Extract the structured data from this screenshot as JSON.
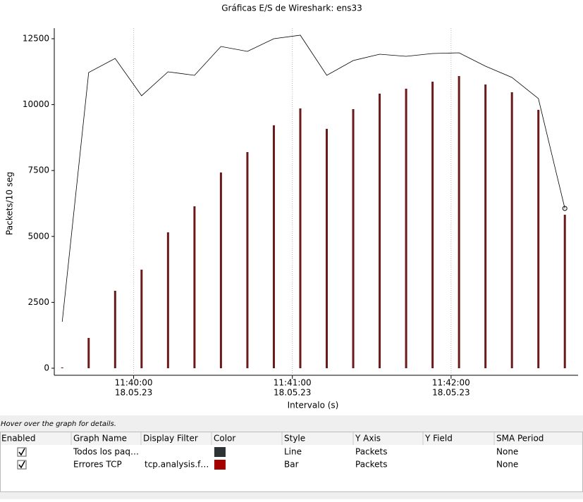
{
  "chart_data": {
    "type": "combo",
    "title": "Gráficas E/S de Wireshark: ens33",
    "ylabel": "Packets/10 seg",
    "xlabel": "Intervalo (s)",
    "x": [
      41973,
      41983,
      41993,
      42003,
      42013,
      42023,
      42033,
      42043,
      42053,
      42063,
      42073,
      42083,
      42093,
      42103,
      42113,
      42123,
      42133,
      42143,
      42153,
      42163
    ],
    "series": [
      {
        "type": "line",
        "color": "#000000",
        "values": [
          1763,
          11218,
          11752,
          10337,
          11245,
          11111,
          12206,
          12019,
          12500,
          12634,
          11111,
          11672,
          11912,
          11832,
          11939,
          11966,
          11458,
          11031,
          10230,
          6063
        ]
      },
      {
        "type": "bar",
        "color": "#6b1a1a",
        "values": [
          30,
          1150,
          2938,
          3739,
          5155,
          6143,
          7425,
          8200,
          9215,
          9856,
          9081,
          9829,
          10417,
          10604,
          10871,
          11084,
          10764,
          10470,
          9802,
          5823
        ]
      }
    ],
    "xlim": [
      41970,
      42168
    ],
    "ylim": [
      0,
      12500
    ],
    "xticks": [
      {
        "value": 42000,
        "label": "11:40:00",
        "date": "18.05.23"
      },
      {
        "value": 42060,
        "label": "11:41:00",
        "date": "18.05.23"
      },
      {
        "value": 42120,
        "label": "11:42:00",
        "date": "18.05.23"
      }
    ],
    "yticks": [
      0,
      2500,
      5000,
      7500,
      10000,
      12500
    ],
    "grid": true
  },
  "table": {
    "caption": "Hover over the graph for details.",
    "columns": [
      "Enabled",
      "Graph Name",
      "Display Filter",
      "Color",
      "Style",
      "Y Axis",
      "Y Field",
      "SMA Period"
    ],
    "rows": [
      {
        "enabled": true,
        "graph_name": "Todos los paq…",
        "color": "#2e3436",
        "style": "Line",
        "y_axis": "Packets",
        "sma_period": "None"
      },
      {
        "enabled": true,
        "graph_name": "Errores TCP",
        "display_filter": "tcp.analysis.f…",
        "color": "#a40000",
        "style": "Bar",
        "y_axis": "Packets",
        "sma_period": "None"
      }
    ]
  }
}
